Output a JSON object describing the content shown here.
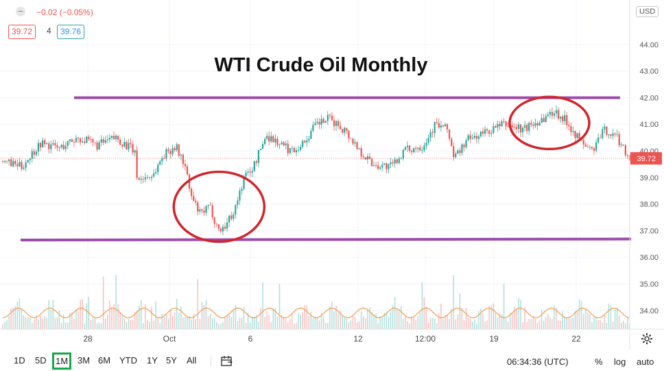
{
  "header": {
    "change_text": "−0.02 (−0.05%)",
    "bid": "39.72",
    "spread": "4",
    "ask": "39.76",
    "currency": "USD"
  },
  "chart_data": {
    "type": "candlestick",
    "title": "WTI Crude Oil Monthly",
    "y_axis": {
      "ticks": [
        "44.00",
        "43.00",
        "42.00",
        "41.00",
        "40.00",
        "39.00",
        "38.00",
        "37.00",
        "36.00",
        "35.00",
        "34.00"
      ],
      "ylim": [
        33.3,
        45.25
      ]
    },
    "x_axis": {
      "tick_labels": [
        "28",
        "Oct",
        "6",
        "12",
        "12:00",
        "19",
        "22"
      ]
    },
    "last_price": "39.72",
    "last_price_color": "#ef5350",
    "bull_color": "#26a69a",
    "bear_color": "#ef5350",
    "price_path_approx": [
      [
        0,
        39.6
      ],
      [
        0.03,
        39.4
      ],
      [
        0.06,
        40.3
      ],
      [
        0.09,
        40.1
      ],
      [
        0.12,
        40.5
      ],
      [
        0.15,
        40.2
      ],
      [
        0.18,
        40.5
      ],
      [
        0.21,
        40.0
      ],
      [
        0.215,
        38.9
      ],
      [
        0.24,
        39.1
      ],
      [
        0.255,
        39.8
      ],
      [
        0.275,
        40.2
      ],
      [
        0.29,
        39.5
      ],
      [
        0.3,
        38.3
      ],
      [
        0.315,
        37.6
      ],
      [
        0.33,
        37.9
      ],
      [
        0.345,
        37.0
      ],
      [
        0.355,
        37.2
      ],
      [
        0.37,
        37.8
      ],
      [
        0.385,
        39.0
      ],
      [
        0.4,
        39.4
      ],
      [
        0.42,
        40.6
      ],
      [
        0.44,
        40.3
      ],
      [
        0.46,
        40.0
      ],
      [
        0.48,
        40.3
      ],
      [
        0.5,
        41.0
      ],
      [
        0.52,
        41.2
      ],
      [
        0.545,
        40.8
      ],
      [
        0.57,
        40.0
      ],
      [
        0.59,
        39.5
      ],
      [
        0.62,
        39.4
      ],
      [
        0.64,
        40.0
      ],
      [
        0.67,
        40.2
      ],
      [
        0.69,
        41.0
      ],
      [
        0.71,
        40.8
      ],
      [
        0.72,
        39.7
      ],
      [
        0.74,
        40.4
      ],
      [
        0.77,
        40.7
      ],
      [
        0.8,
        41.0
      ],
      [
        0.83,
        40.8
      ],
      [
        0.86,
        41.2
      ],
      [
        0.88,
        41.5
      ],
      [
        0.9,
        41.1
      ],
      [
        0.92,
        40.4
      ],
      [
        0.94,
        40.0
      ],
      [
        0.96,
        40.8
      ],
      [
        0.98,
        40.5
      ],
      [
        1.0,
        39.72
      ]
    ]
  },
  "annotations": {
    "resistance_level": 42.0,
    "support_level": 36.65,
    "line_color": "#9b4bab",
    "circle_color": "#d0262c",
    "support_circle": {
      "x_center_frac": 0.345,
      "price_center": 37.9
    },
    "resistance_circle": {
      "x_center_frac": 0.872,
      "price_center": 41.05
    }
  },
  "toolbar": {
    "timeframes": [
      "1D",
      "5D",
      "1M",
      "3M",
      "6M",
      "YTD",
      "1Y",
      "5Y",
      "All"
    ],
    "active_timeframe": "1M",
    "clock": "06:34:36 (UTC)",
    "percent_label": "%",
    "log_label": "log",
    "auto_label": "auto"
  }
}
